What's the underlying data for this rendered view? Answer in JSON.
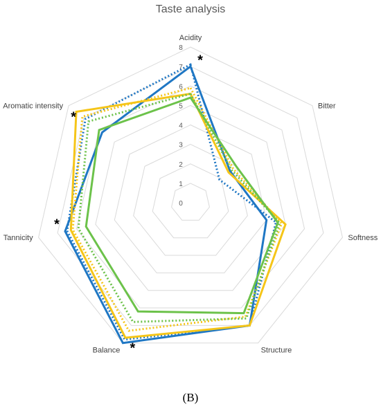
{
  "chart_data": {
    "type": "radar",
    "title": "Taste analysis",
    "axes": [
      "Acidity",
      "Bitter",
      "Softness",
      "Structure",
      "Balance",
      "Tannicity",
      "Aromatic intensity"
    ],
    "rmin": 0,
    "rmax": 8,
    "ticks": [
      "0",
      "1",
      "2",
      "3",
      "4",
      "5",
      "6",
      "7",
      "8"
    ],
    "grid": true,
    "legend": "none",
    "series": [
      {
        "color": "#1f77c4",
        "style": "solid",
        "values": [
          7.0,
          2.6,
          4.0,
          7.0,
          8.0,
          6.6,
          5.8
        ]
      },
      {
        "color": "#1f77c4",
        "style": "dotted",
        "values": [
          7.1,
          1.9,
          4.5,
          7.0,
          7.8,
          6.5,
          6.9
        ]
      },
      {
        "color": "#f5c518",
        "style": "solid",
        "values": [
          5.6,
          2.5,
          5.0,
          7.0,
          7.7,
          6.3,
          7.5
        ]
      },
      {
        "color": "#f5c518",
        "style": "dotted",
        "values": [
          5.9,
          2.8,
          4.8,
          6.5,
          7.3,
          6.2,
          7.1
        ]
      },
      {
        "color": "#6cc24a",
        "style": "solid",
        "values": [
          5.4,
          3.0,
          4.6,
          6.3,
          6.2,
          5.5,
          6.0
        ]
      },
      {
        "color": "#6cc24a",
        "style": "dotted",
        "values": [
          5.6,
          2.7,
          4.7,
          6.6,
          6.8,
          5.9,
          6.7
        ]
      }
    ],
    "significance_marker": "*",
    "significant_axes": [
      "Acidity",
      "Aromatic intensity",
      "Tannicity",
      "Balance"
    ]
  },
  "panel_label": "(B)"
}
